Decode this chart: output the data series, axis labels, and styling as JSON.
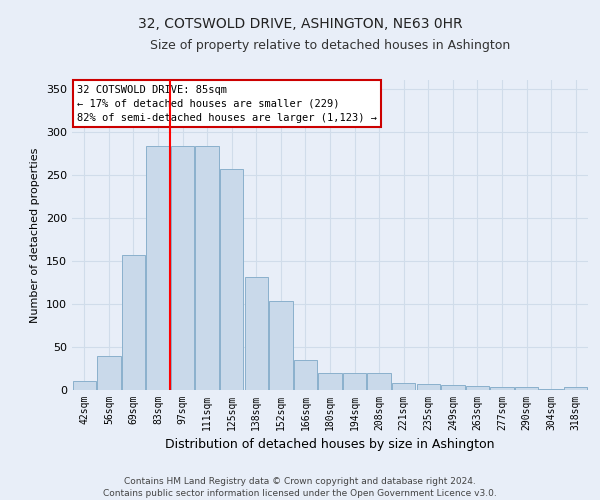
{
  "title": "32, COTSWOLD DRIVE, ASHINGTON, NE63 0HR",
  "subtitle": "Size of property relative to detached houses in Ashington",
  "xlabel": "Distribution of detached houses by size in Ashington",
  "ylabel": "Number of detached properties",
  "categories": [
    "42sqm",
    "56sqm",
    "69sqm",
    "83sqm",
    "97sqm",
    "111sqm",
    "125sqm",
    "138sqm",
    "152sqm",
    "166sqm",
    "180sqm",
    "194sqm",
    "208sqm",
    "221sqm",
    "235sqm",
    "249sqm",
    "263sqm",
    "277sqm",
    "290sqm",
    "304sqm",
    "318sqm"
  ],
  "values": [
    10,
    40,
    157,
    283,
    283,
    283,
    257,
    131,
    103,
    35,
    20,
    20,
    20,
    8,
    7,
    6,
    5,
    4,
    3,
    1,
    3
  ],
  "bar_color": "#c9d9ea",
  "bar_edge_color": "#8ab0cc",
  "grid_color": "#d0dcea",
  "background_color": "#e8eef8",
  "red_line_index": 3,
  "annotation_text": "32 COTSWOLD DRIVE: 85sqm\n← 17% of detached houses are smaller (229)\n82% of semi-detached houses are larger (1,123) →",
  "annotation_box_color": "#ffffff",
  "annotation_border_color": "#cc0000",
  "footer_line1": "Contains HM Land Registry data © Crown copyright and database right 2024.",
  "footer_line2": "Contains public sector information licensed under the Open Government Licence v3.0.",
  "ylim": [
    0,
    360
  ],
  "yticks": [
    0,
    50,
    100,
    150,
    200,
    250,
    300,
    350
  ]
}
